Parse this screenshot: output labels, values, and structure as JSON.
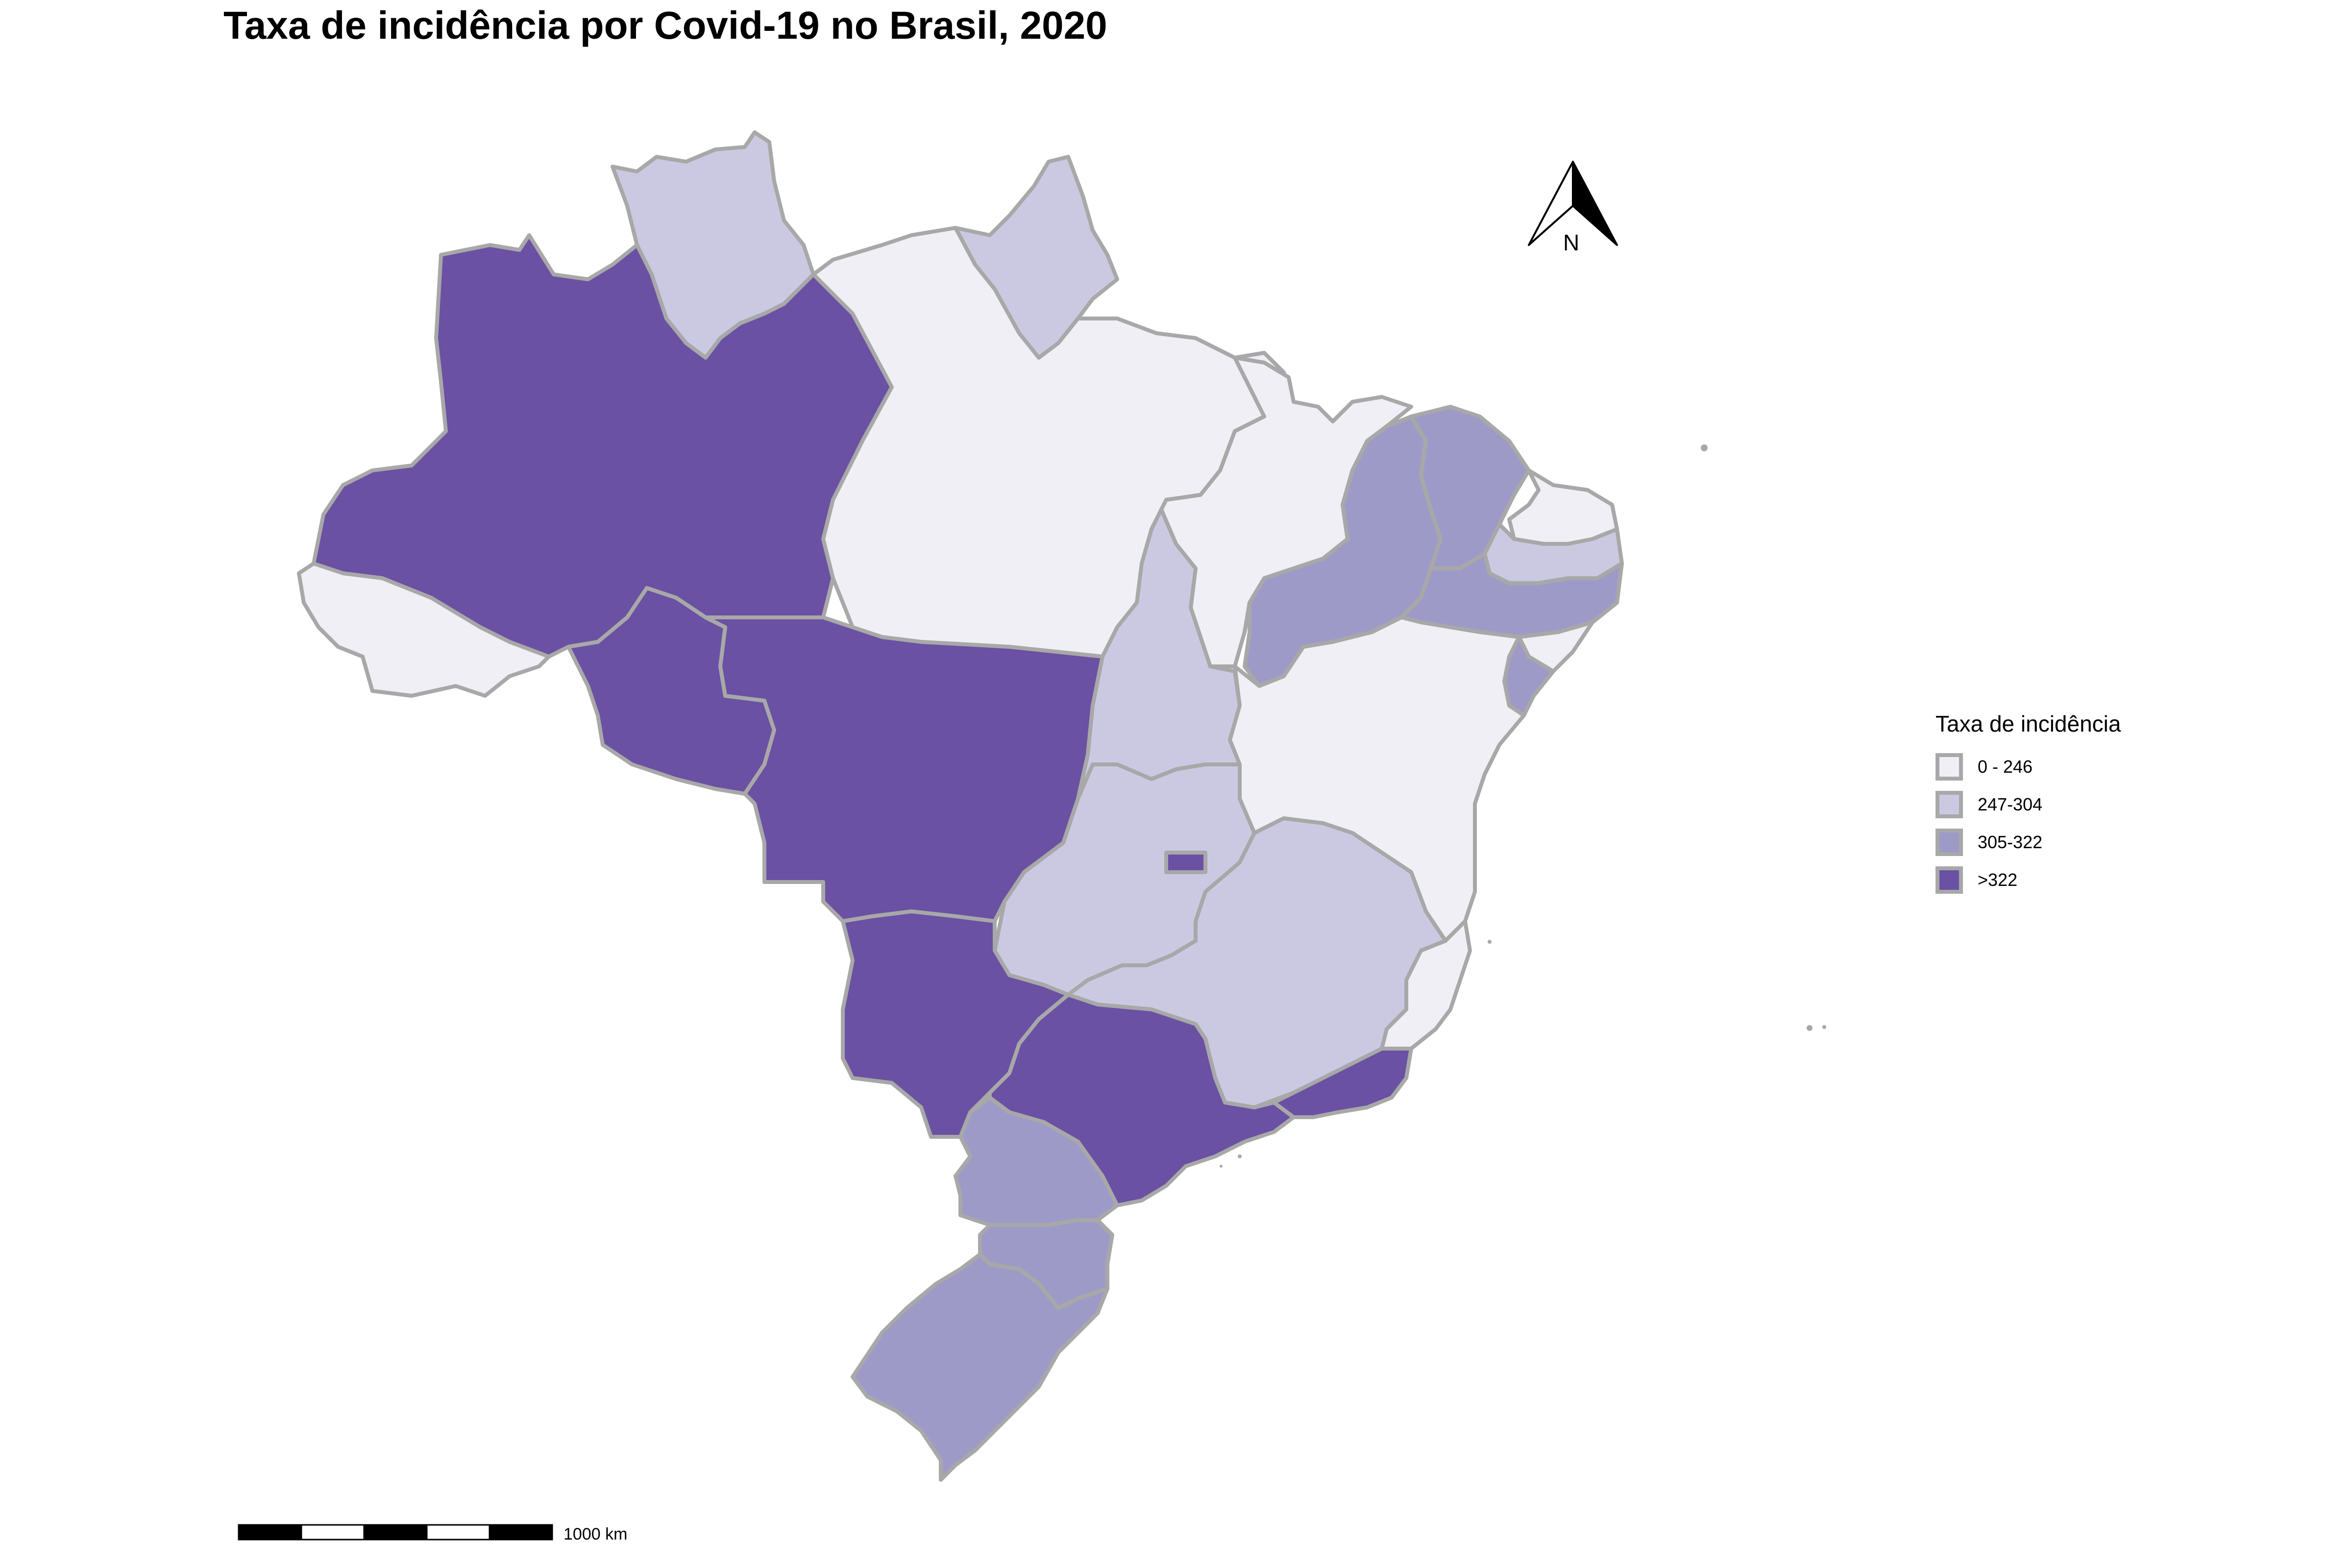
{
  "title": "Taxa de incidência por Covid-19 no Brasil, 2020",
  "colors": {
    "class_0_246": "#f0eff5",
    "class_247_304": "#cbc9e2",
    "class_305_322": "#9e9ac8",
    "class_gt_322": "#6a51a3",
    "border": "#a8a8a8"
  },
  "legend": {
    "title": "Taxa de incidência",
    "items": [
      {
        "label": "0 - 246",
        "color": "#f0eff5"
      },
      {
        "label": "247-304",
        "color": "#cbc9e2"
      },
      {
        "label": "305-322",
        "color": "#9e9ac8"
      },
      {
        "label": ">322",
        "color": "#6a51a3"
      }
    ]
  },
  "north_arrow": {
    "label": "N"
  },
  "scale_bar": {
    "label": "1000 km"
  },
  "states": [
    {
      "name": "roraima",
      "class": "247-304"
    },
    {
      "name": "amapa",
      "class": "247-304"
    },
    {
      "name": "amazonas",
      "class": ">322"
    },
    {
      "name": "acre",
      "class": "0 - 246"
    },
    {
      "name": "para",
      "class": "0 - 246"
    },
    {
      "name": "rondonia",
      "class": ">322"
    },
    {
      "name": "mato-grosso",
      "class": ">322"
    },
    {
      "name": "maranhao",
      "class": "0 - 246"
    },
    {
      "name": "tocantins",
      "class": "247-304"
    },
    {
      "name": "piaui",
      "class": "305-322"
    },
    {
      "name": "ceara",
      "class": "305-322"
    },
    {
      "name": "rio-grande-do-norte",
      "class": "0 - 246"
    },
    {
      "name": "paraiba",
      "class": "247-304"
    },
    {
      "name": "pernambuco",
      "class": "305-322"
    },
    {
      "name": "alagoas",
      "class": "0 - 246"
    },
    {
      "name": "sergipe",
      "class": "305-322"
    },
    {
      "name": "bahia",
      "class": "0 - 246"
    },
    {
      "name": "goias",
      "class": "247-304"
    },
    {
      "name": "distrito-federal",
      "class": ">322"
    },
    {
      "name": "minas-gerais",
      "class": "247-304"
    },
    {
      "name": "espirito-santo",
      "class": "0 - 246"
    },
    {
      "name": "mato-grosso-do-sul",
      "class": ">322"
    },
    {
      "name": "sao-paulo",
      "class": ">322"
    },
    {
      "name": "rio-de-janeiro",
      "class": ">322"
    },
    {
      "name": "parana",
      "class": "305-322"
    },
    {
      "name": "santa-catarina",
      "class": "305-322"
    },
    {
      "name": "rio-grande-do-sul",
      "class": "305-322"
    }
  ]
}
